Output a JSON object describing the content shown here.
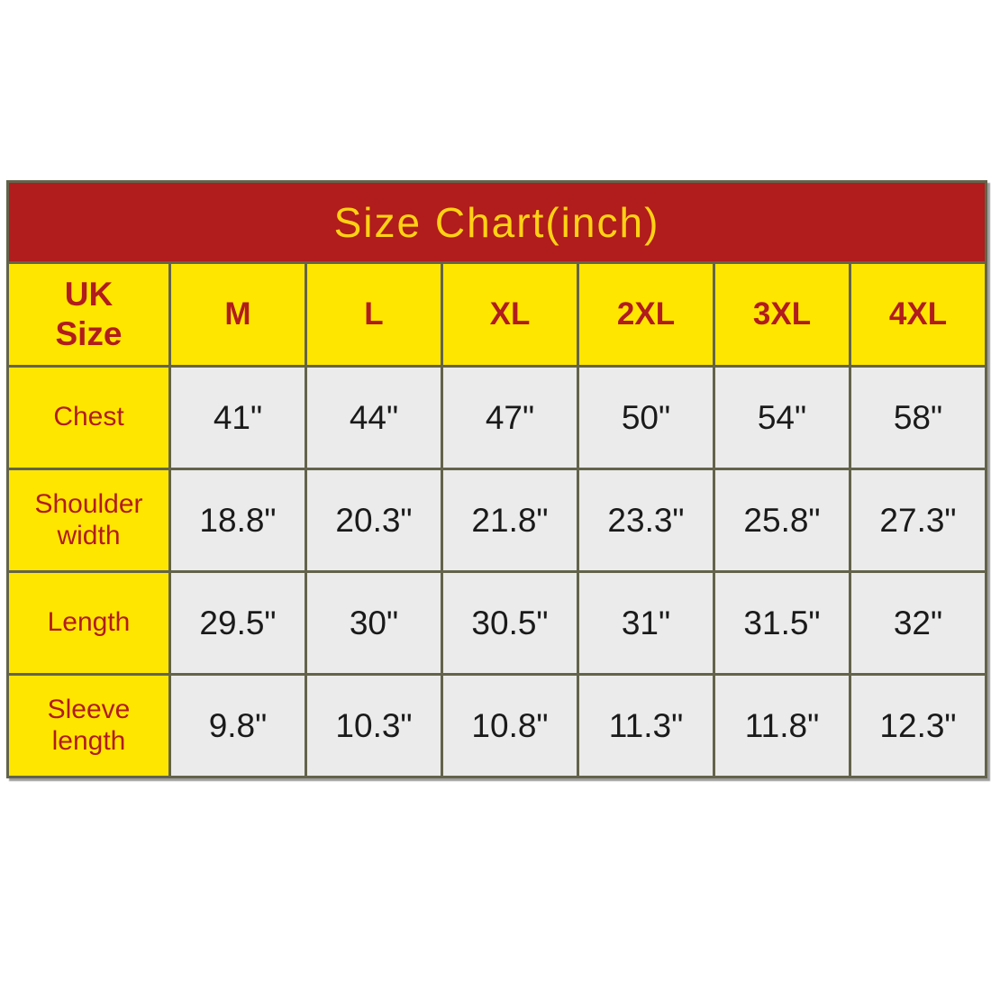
{
  "page": {
    "background": "#ffffff"
  },
  "colors": {
    "banner_red": "#B11C1C",
    "banner_text_yellow": "#FFD213",
    "header_yellow": "#FFE600",
    "header_text_red": "#B11C1C",
    "data_cell_gray": "#EBEBEB",
    "data_text_black": "#1A1A1A",
    "grid_line": "#63634B"
  },
  "chart_data": {
    "type": "table",
    "title": "Size Chart(inch)",
    "unit": "inch",
    "row_header": "UK Size",
    "row_header_lines": [
      "UK",
      "Size"
    ],
    "columns": [
      "M",
      "L",
      "XL",
      "2XL",
      "3XL",
      "4XL"
    ],
    "rows": [
      {
        "label": "Chest",
        "values": [
          "41\"",
          "44\"",
          "47\"",
          "50\"",
          "54\"",
          "58\""
        ]
      },
      {
        "label": "Shoulder width",
        "values": [
          "18.8\"",
          "20.3\"",
          "21.8\"",
          "23.3\"",
          "25.8\"",
          "27.3\""
        ]
      },
      {
        "label": "Length",
        "values": [
          "29.5\"",
          "30\"",
          "30.5\"",
          "31\"",
          "31.5\"",
          "32\""
        ]
      },
      {
        "label": "Sleeve length",
        "values": [
          "9.8\"",
          "10.3\"",
          "10.8\"",
          "11.3\"",
          "11.8\"",
          "12.3\""
        ]
      }
    ]
  }
}
